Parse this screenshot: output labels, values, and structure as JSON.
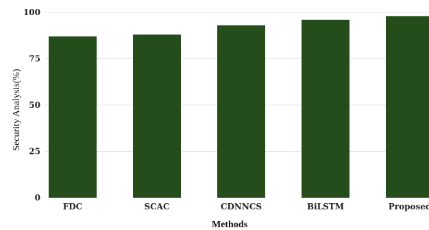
{
  "chart_data": {
    "type": "bar",
    "categories": [
      "FDC",
      "SCAC",
      "CDNNCS",
      "BiLSTM",
      "Proposed"
    ],
    "values": [
      87,
      88,
      93,
      96,
      98
    ],
    "xlabel": "Methods",
    "ylabel": "Security Analysis(%)",
    "ylim": [
      0,
      100
    ],
    "yticks": [
      0,
      25,
      50,
      75,
      100
    ],
    "grid": true,
    "bar_color": "#254d1b"
  }
}
